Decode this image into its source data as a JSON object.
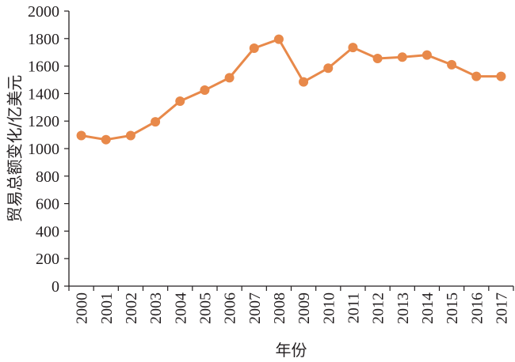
{
  "chart_data": {
    "type": "line",
    "title": "",
    "xlabel": "年份",
    "ylabel": "贸易总额变化/亿美元",
    "x": [
      "2000",
      "2001",
      "2002",
      "2003",
      "2004",
      "2005",
      "2006",
      "2007",
      "2008",
      "2009",
      "2010",
      "2011",
      "2012",
      "2013",
      "2014",
      "2015",
      "2016",
      "2017"
    ],
    "series": [
      {
        "values": [
          1095,
          1065,
          1095,
          1195,
          1345,
          1425,
          1515,
          1730,
          1795,
          1485,
          1585,
          1735,
          1655,
          1665,
          1680,
          1610,
          1525,
          1525
        ]
      }
    ],
    "yticks": [
      "0",
      "200",
      "400",
      "600",
      "800",
      "1000",
      "1200",
      "1400",
      "1600",
      "1800",
      "2000"
    ],
    "ylim": [
      0,
      2000
    ],
    "grid": false,
    "legend": "none",
    "colors": {
      "series": "#e8894a",
      "axis": "#231f20"
    }
  }
}
